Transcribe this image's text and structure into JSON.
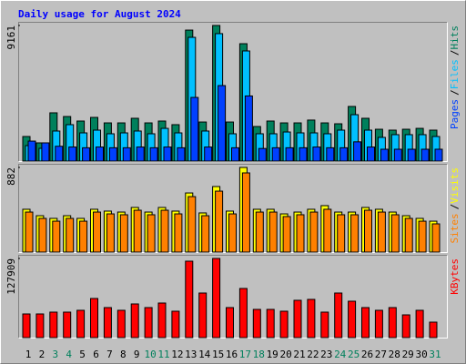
{
  "title": "Daily usage for August 2024",
  "legend_separator": "/",
  "chart_data": [
    {
      "type": "bar",
      "ylim": [
        0,
        9161
      ],
      "yticks": [
        9161
      ],
      "series": [
        {
          "name": "Hits",
          "color": "#00805c",
          "values": [
            1660,
            1230,
            3260,
            3010,
            2705,
            2950,
            2580,
            2580,
            2890,
            2580,
            2705,
            2460,
            8850,
            2640,
            9161,
            2640,
            7930,
            2335,
            2705,
            2580,
            2580,
            2770,
            2580,
            2520,
            3690,
            2890,
            2150,
            2090,
            2150,
            2210,
            2090
          ]
        },
        {
          "name": "Files",
          "color": "#00c0ff",
          "values": [
            1045,
            860,
            2030,
            2460,
            1905,
            2090,
            1845,
            1905,
            2030,
            1845,
            2210,
            1905,
            8360,
            2030,
            8610,
            1845,
            7440,
            1845,
            1845,
            1965,
            1905,
            1905,
            1845,
            2090,
            3135,
            2090,
            1600,
            1785,
            1785,
            1785,
            1660
          ]
        },
        {
          "name": "Pages",
          "color": "#0040ff",
          "values": [
            1350,
            1230,
            1000,
            950,
            900,
            950,
            900,
            900,
            950,
            900,
            950,
            900,
            4300,
            950,
            5100,
            900,
            4400,
            850,
            900,
            900,
            900,
            950,
            900,
            900,
            1300,
            950,
            800,
            800,
            800,
            800,
            800
          ]
        }
      ]
    },
    {
      "type": "bar",
      "ylim": [
        0,
        882
      ],
      "yticks": [
        882
      ],
      "series": [
        {
          "name": "Visits",
          "color": "#ffff00",
          "values": [
            446,
            379,
            351,
            379,
            351,
            446,
            427,
            417,
            465,
            417,
            465,
            427,
            616,
            408,
            683,
            427,
            882,
            446,
            446,
            398,
            417,
            446,
            484,
            417,
            417,
            465,
            446,
            417,
            379,
            351,
            322
          ]
        },
        {
          "name": "Sites",
          "color": "#ff8000",
          "values": [
            417,
            351,
            322,
            351,
            322,
            417,
            398,
            389,
            436,
            389,
            436,
            398,
            578,
            379,
            635,
            398,
            825,
            417,
            417,
            370,
            389,
            417,
            446,
            389,
            389,
            436,
            417,
            389,
            351,
            322,
            294
          ]
        }
      ]
    },
    {
      "type": "bar",
      "ylim": [
        0,
        127909
      ],
      "yticks": [
        127909
      ],
      "series": [
        {
          "name": "KBytes",
          "color": "#ff0000",
          "values": [
            38226,
            38226,
            41166,
            41166,
            44107,
            63218,
            48517,
            44107,
            54397,
            48517,
            55868,
            42636,
            123499,
            72040,
            127909,
            48517,
            79391,
            45577,
            45577,
            42636,
            60279,
            61749,
            41166,
            72040,
            58808,
            48517,
            44107,
            48517,
            36755,
            44107,
            24994
          ]
        }
      ],
      "categories": [
        "1",
        "2",
        "3",
        "4",
        "5",
        "6",
        "7",
        "8",
        "9",
        "10",
        "11",
        "12",
        "13",
        "14",
        "15",
        "16",
        "17",
        "18",
        "19",
        "20",
        "21",
        "22",
        "23",
        "24",
        "25",
        "26",
        "27",
        "28",
        "29",
        "30",
        "31"
      ],
      "category_colors": [
        "#000000",
        "#000000",
        "#00805c",
        "#00805c",
        "#000000",
        "#000000",
        "#000000",
        "#000000",
        "#000000",
        "#00805c",
        "#00805c",
        "#000000",
        "#000000",
        "#000000",
        "#000000",
        "#000000",
        "#00805c",
        "#00805c",
        "#000000",
        "#000000",
        "#000000",
        "#000000",
        "#000000",
        "#00805c",
        "#00805c",
        "#000000",
        "#000000",
        "#000000",
        "#000000",
        "#000000",
        "#00805c"
      ]
    }
  ]
}
